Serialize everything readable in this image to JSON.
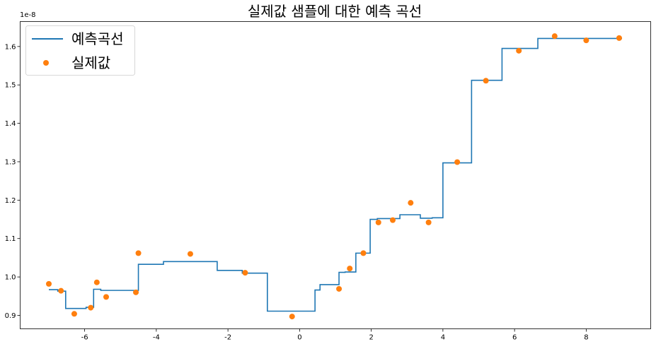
{
  "chart_data": {
    "type": "line",
    "title": "실제값 샘플에 대한 예측 곡선",
    "xlabel": "",
    "ylabel": "",
    "y_scale_label": "1e-8",
    "xlim": [
      -7.8,
      9.8
    ],
    "ylim": [
      0.865,
      1.665
    ],
    "x_ticks": [
      -6,
      -4,
      -2,
      0,
      2,
      4,
      6,
      8
    ],
    "x_tick_labels": [
      "-6",
      "-4",
      "-2",
      "0",
      "2",
      "4",
      "6",
      "8"
    ],
    "y_ticks": [
      0.9,
      1.0,
      1.1,
      1.2,
      1.3,
      1.4,
      1.5,
      1.6
    ],
    "y_tick_labels": [
      "0.9",
      "1.0",
      "1.1",
      "1.2",
      "1.3",
      "1.4",
      "1.5",
      "1.6"
    ],
    "grid": false,
    "legend": "top-left",
    "series": [
      {
        "name": "예측곡선",
        "kind": "step",
        "color": "#1f77b4",
        "x": [
          -7.0,
          -6.75,
          -6.75,
          -6.53,
          -6.53,
          -5.96,
          -5.96,
          -5.75,
          -5.75,
          -5.55,
          -5.55,
          -4.5,
          -4.5,
          -3.8,
          -3.8,
          -2.3,
          -2.3,
          -1.6,
          -1.6,
          -0.9,
          -0.9,
          0.43,
          0.43,
          0.57,
          0.57,
          1.1,
          1.1,
          1.27,
          1.27,
          1.57,
          1.57,
          1.97,
          1.97,
          2.17,
          2.17,
          2.8,
          2.8,
          3.37,
          3.37,
          3.7,
          3.7,
          4.0,
          4.0,
          4.8,
          4.8,
          5.65,
          5.65,
          6.65,
          6.65,
          9.0
        ],
        "y": [
          0.967,
          0.967,
          0.963,
          0.963,
          0.918,
          0.918,
          0.921,
          0.921,
          0.968,
          0.968,
          0.965,
          0.965,
          1.033,
          1.033,
          1.04,
          1.04,
          1.017,
          1.017,
          1.01,
          1.01,
          0.911,
          0.911,
          0.966,
          0.966,
          0.98,
          0.98,
          1.012,
          1.012,
          1.013,
          1.013,
          1.062,
          1.062,
          1.15,
          1.15,
          1.152,
          1.152,
          1.162,
          1.162,
          1.153,
          1.153,
          1.154,
          1.154,
          1.297,
          1.297,
          1.512,
          1.512,
          1.595,
          1.595,
          1.621,
          1.621
        ]
      },
      {
        "name": "실제값",
        "kind": "scatter",
        "color": "#ff7f0e",
        "x": [
          -7.0,
          -6.66,
          -6.29,
          -5.83,
          -5.66,
          -5.4,
          -4.57,
          -4.5,
          -3.05,
          -1.52,
          -0.21,
          1.1,
          1.4,
          1.78,
          2.2,
          2.6,
          3.1,
          3.6,
          4.4,
          5.2,
          6.12,
          7.12,
          8.0,
          8.92
        ],
        "y": [
          0.982,
          0.964,
          0.904,
          0.92,
          0.986,
          0.948,
          0.96,
          1.062,
          1.06,
          1.011,
          0.897,
          0.969,
          1.022,
          1.062,
          1.142,
          1.148,
          1.193,
          1.142,
          1.299,
          1.511,
          1.589,
          1.627,
          1.616,
          1.622
        ]
      }
    ]
  }
}
